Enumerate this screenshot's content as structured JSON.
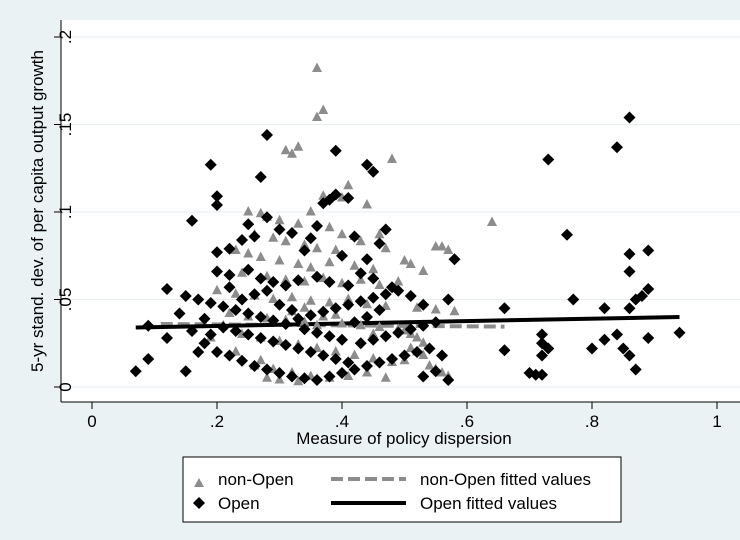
{
  "chart_data": {
    "type": "scatter",
    "title": "",
    "xlabel": "Measure of policy dispersion",
    "ylabel": "5-yr stand. dev. of per capita output growth",
    "xlim": [
      0,
      1
    ],
    "ylim": [
      0,
      0.2
    ],
    "x_ticks": [
      "0",
      ".2",
      ".4",
      ".6",
      ".8",
      "1"
    ],
    "y_ticks": [
      "0",
      ".05",
      ".1",
      ".15",
      ".2"
    ],
    "grid": "horizontal",
    "legend_position": "bottom",
    "colors": {
      "background": "#eaf2f3",
      "plot_area": "#ffffff",
      "non_open": "#8c8c8c",
      "open": "#000000",
      "grid": "#e6eef0"
    },
    "series": [
      {
        "name": "non-Open",
        "marker": "triangle",
        "points": [
          [
            0.36,
            0.182
          ],
          [
            0.37,
            0.158
          ],
          [
            0.36,
            0.154
          ],
          [
            0.31,
            0.135
          ],
          [
            0.32,
            0.133
          ],
          [
            0.33,
            0.137
          ],
          [
            0.48,
            0.13
          ],
          [
            0.41,
            0.115
          ],
          [
            0.37,
            0.109
          ],
          [
            0.4,
            0.108
          ],
          [
            0.44,
            0.104
          ],
          [
            0.35,
            0.1
          ],
          [
            0.25,
            0.1
          ],
          [
            0.27,
            0.099
          ],
          [
            0.28,
            0.097
          ],
          [
            0.3,
            0.095
          ],
          [
            0.33,
            0.093
          ],
          [
            0.38,
            0.091
          ],
          [
            0.4,
            0.087
          ],
          [
            0.42,
            0.086
          ],
          [
            0.46,
            0.087
          ],
          [
            0.64,
            0.094
          ],
          [
            0.26,
            0.087
          ],
          [
            0.29,
            0.085
          ],
          [
            0.31,
            0.083
          ],
          [
            0.34,
            0.081
          ],
          [
            0.36,
            0.079
          ],
          [
            0.39,
            0.078
          ],
          [
            0.43,
            0.083
          ],
          [
            0.47,
            0.079
          ],
          [
            0.56,
            0.08
          ],
          [
            0.55,
            0.08
          ],
          [
            0.57,
            0.078
          ],
          [
            0.23,
            0.078
          ],
          [
            0.25,
            0.076
          ],
          [
            0.27,
            0.074
          ],
          [
            0.3,
            0.072
          ],
          [
            0.33,
            0.07
          ],
          [
            0.35,
            0.068
          ],
          [
            0.38,
            0.071
          ],
          [
            0.42,
            0.069
          ],
          [
            0.45,
            0.067
          ],
          [
            0.5,
            0.072
          ],
          [
            0.51,
            0.07
          ],
          [
            0.53,
            0.066
          ],
          [
            0.24,
            0.065
          ],
          [
            0.28,
            0.063
          ],
          [
            0.31,
            0.061
          ],
          [
            0.34,
            0.06
          ],
          [
            0.37,
            0.062
          ],
          [
            0.4,
            0.059
          ],
          [
            0.43,
            0.061
          ],
          [
            0.46,
            0.058
          ],
          [
            0.49,
            0.06
          ],
          [
            0.2,
            0.055
          ],
          [
            0.23,
            0.053
          ],
          [
            0.26,
            0.052
          ],
          [
            0.29,
            0.05
          ],
          [
            0.32,
            0.051
          ],
          [
            0.35,
            0.049
          ],
          [
            0.38,
            0.048
          ],
          [
            0.41,
            0.05
          ],
          [
            0.44,
            0.047
          ],
          [
            0.47,
            0.046
          ],
          [
            0.52,
            0.045
          ],
          [
            0.55,
            0.044
          ],
          [
            0.58,
            0.043
          ],
          [
            0.22,
            0.042
          ],
          [
            0.25,
            0.04
          ],
          [
            0.28,
            0.039
          ],
          [
            0.31,
            0.038
          ],
          [
            0.34,
            0.037
          ],
          [
            0.37,
            0.04
          ],
          [
            0.4,
            0.036
          ],
          [
            0.43,
            0.035
          ],
          [
            0.46,
            0.034
          ],
          [
            0.49,
            0.033
          ],
          [
            0.5,
            0.032
          ],
          [
            0.51,
            0.03
          ],
          [
            0.52,
            0.028
          ],
          [
            0.53,
            0.025
          ],
          [
            0.51,
            0.022
          ],
          [
            0.52,
            0.02
          ],
          [
            0.53,
            0.018
          ],
          [
            0.5,
            0.015
          ],
          [
            0.54,
            0.012
          ],
          [
            0.55,
            0.01
          ],
          [
            0.56,
            0.008
          ],
          [
            0.57,
            0.006
          ],
          [
            0.24,
            0.03
          ],
          [
            0.27,
            0.028
          ],
          [
            0.3,
            0.026
          ],
          [
            0.33,
            0.024
          ],
          [
            0.36,
            0.022
          ],
          [
            0.39,
            0.02
          ],
          [
            0.42,
            0.018
          ],
          [
            0.45,
            0.016
          ],
          [
            0.48,
            0.014
          ],
          [
            0.26,
            0.012
          ],
          [
            0.29,
            0.01
          ],
          [
            0.32,
            0.008
          ],
          [
            0.35,
            0.006
          ],
          [
            0.38,
            0.005
          ],
          [
            0.41,
            0.006
          ],
          [
            0.3,
            0.004
          ],
          [
            0.28,
            0.005
          ],
          [
            0.33,
            0.003
          ],
          [
            0.44,
            0.008
          ],
          [
            0.47,
            0.005
          ],
          [
            0.21,
            0.035
          ],
          [
            0.19,
            0.028
          ],
          [
            0.23,
            0.02
          ],
          [
            0.27,
            0.015
          ],
          [
            0.34,
            0.045
          ],
          [
            0.39,
            0.041
          ],
          [
            0.45,
            0.03
          ],
          [
            0.36,
            0.035
          ],
          [
            0.32,
            0.043
          ]
        ]
      },
      {
        "name": "Open",
        "marker": "diamond",
        "points": [
          [
            0.28,
            0.144
          ],
          [
            0.39,
            0.135
          ],
          [
            0.44,
            0.127
          ],
          [
            0.45,
            0.123
          ],
          [
            0.19,
            0.127
          ],
          [
            0.27,
            0.12
          ],
          [
            0.2,
            0.109
          ],
          [
            0.2,
            0.104
          ],
          [
            0.39,
            0.11
          ],
          [
            0.41,
            0.108
          ],
          [
            0.37,
            0.105
          ],
          [
            0.38,
            0.107
          ],
          [
            0.16,
            0.095
          ],
          [
            0.28,
            0.097
          ],
          [
            0.25,
            0.093
          ],
          [
            0.36,
            0.092
          ],
          [
            0.47,
            0.09
          ],
          [
            0.2,
            0.077
          ],
          [
            0.22,
            0.079
          ],
          [
            0.24,
            0.084
          ],
          [
            0.26,
            0.086
          ],
          [
            0.3,
            0.09
          ],
          [
            0.32,
            0.088
          ],
          [
            0.35,
            0.085
          ],
          [
            0.42,
            0.086
          ],
          [
            0.46,
            0.082
          ],
          [
            0.34,
            0.078
          ],
          [
            0.4,
            0.075
          ],
          [
            0.44,
            0.073
          ],
          [
            0.58,
            0.073
          ],
          [
            0.2,
            0.066
          ],
          [
            0.22,
            0.064
          ],
          [
            0.25,
            0.067
          ],
          [
            0.27,
            0.062
          ],
          [
            0.29,
            0.06
          ],
          [
            0.31,
            0.058
          ],
          [
            0.33,
            0.061
          ],
          [
            0.36,
            0.063
          ],
          [
            0.38,
            0.06
          ],
          [
            0.41,
            0.058
          ],
          [
            0.43,
            0.065
          ],
          [
            0.45,
            0.062
          ],
          [
            0.48,
            0.057
          ],
          [
            0.12,
            0.056
          ],
          [
            0.15,
            0.052
          ],
          [
            0.17,
            0.05
          ],
          [
            0.19,
            0.048
          ],
          [
            0.21,
            0.046
          ],
          [
            0.23,
            0.044
          ],
          [
            0.25,
            0.042
          ],
          [
            0.27,
            0.04
          ],
          [
            0.29,
            0.038
          ],
          [
            0.31,
            0.036
          ],
          [
            0.33,
            0.039
          ],
          [
            0.35,
            0.041
          ],
          [
            0.37,
            0.043
          ],
          [
            0.39,
            0.045
          ],
          [
            0.41,
            0.047
          ],
          [
            0.43,
            0.049
          ],
          [
            0.45,
            0.051
          ],
          [
            0.47,
            0.053
          ],
          [
            0.49,
            0.055
          ],
          [
            0.51,
            0.052
          ],
          [
            0.53,
            0.047
          ],
          [
            0.57,
            0.05
          ],
          [
            0.09,
            0.035
          ],
          [
            0.12,
            0.028
          ],
          [
            0.14,
            0.042
          ],
          [
            0.16,
            0.032
          ],
          [
            0.18,
            0.025
          ],
          [
            0.2,
            0.02
          ],
          [
            0.22,
            0.018
          ],
          [
            0.24,
            0.015
          ],
          [
            0.26,
            0.012
          ],
          [
            0.28,
            0.01
          ],
          [
            0.3,
            0.008
          ],
          [
            0.32,
            0.006
          ],
          [
            0.34,
            0.005
          ],
          [
            0.36,
            0.004
          ],
          [
            0.38,
            0.006
          ],
          [
            0.4,
            0.008
          ],
          [
            0.42,
            0.01
          ],
          [
            0.44,
            0.012
          ],
          [
            0.46,
            0.014
          ],
          [
            0.48,
            0.016
          ],
          [
            0.5,
            0.018
          ],
          [
            0.52,
            0.02
          ],
          [
            0.54,
            0.022
          ],
          [
            0.56,
            0.018
          ],
          [
            0.55,
            0.009
          ],
          [
            0.53,
            0.006
          ],
          [
            0.57,
            0.004
          ],
          [
            0.07,
            0.009
          ],
          [
            0.09,
            0.016
          ],
          [
            0.15,
            0.009
          ],
          [
            0.17,
            0.02
          ],
          [
            0.19,
            0.03
          ],
          [
            0.21,
            0.034
          ],
          [
            0.23,
            0.032
          ],
          [
            0.25,
            0.03
          ],
          [
            0.27,
            0.028
          ],
          [
            0.29,
            0.026
          ],
          [
            0.31,
            0.024
          ],
          [
            0.33,
            0.022
          ],
          [
            0.35,
            0.02
          ],
          [
            0.37,
            0.018
          ],
          [
            0.39,
            0.016
          ],
          [
            0.41,
            0.014
          ],
          [
            0.43,
            0.025
          ],
          [
            0.45,
            0.027
          ],
          [
            0.47,
            0.029
          ],
          [
            0.49,
            0.031
          ],
          [
            0.51,
            0.033
          ],
          [
            0.53,
            0.035
          ],
          [
            0.55,
            0.037
          ],
          [
            0.24,
            0.05
          ],
          [
            0.26,
            0.053
          ],
          [
            0.28,
            0.055
          ],
          [
            0.3,
            0.047
          ],
          [
            0.32,
            0.044
          ],
          [
            0.34,
            0.033
          ],
          [
            0.36,
            0.031
          ],
          [
            0.38,
            0.029
          ],
          [
            0.4,
            0.027
          ],
          [
            0.42,
            0.037
          ],
          [
            0.44,
            0.04
          ],
          [
            0.46,
            0.044
          ],
          [
            0.22,
            0.057
          ],
          [
            0.18,
            0.039
          ],
          [
            0.66,
            0.045
          ],
          [
            0.66,
            0.021
          ],
          [
            0.72,
            0.03
          ],
          [
            0.72,
            0.025
          ],
          [
            0.73,
            0.022
          ],
          [
            0.72,
            0.018
          ],
          [
            0.7,
            0.008
          ],
          [
            0.71,
            0.007
          ],
          [
            0.72,
            0.007
          ],
          [
            0.73,
            0.13
          ],
          [
            0.76,
            0.087
          ],
          [
            0.77,
            0.05
          ],
          [
            0.8,
            0.022
          ],
          [
            0.82,
            0.027
          ],
          [
            0.82,
            0.045
          ],
          [
            0.84,
            0.137
          ],
          [
            0.86,
            0.154
          ],
          [
            0.86,
            0.076
          ],
          [
            0.86,
            0.066
          ],
          [
            0.86,
            0.045
          ],
          [
            0.87,
            0.05
          ],
          [
            0.88,
            0.052
          ],
          [
            0.89,
            0.078
          ],
          [
            0.89,
            0.056
          ],
          [
            0.89,
            0.028
          ],
          [
            0.85,
            0.022
          ],
          [
            0.86,
            0.018
          ],
          [
            0.87,
            0.01
          ],
          [
            0.84,
            0.03
          ],
          [
            0.94,
            0.031
          ]
        ]
      },
      {
        "name": "non-Open fitted values",
        "type": "line",
        "style": "dashed",
        "points": [
          [
            0.11,
            0.036
          ],
          [
            0.66,
            0.0345
          ]
        ]
      },
      {
        "name": "Open fitted values",
        "type": "line",
        "style": "solid",
        "points": [
          [
            0.07,
            0.034
          ],
          [
            0.94,
            0.04
          ]
        ]
      }
    ]
  }
}
